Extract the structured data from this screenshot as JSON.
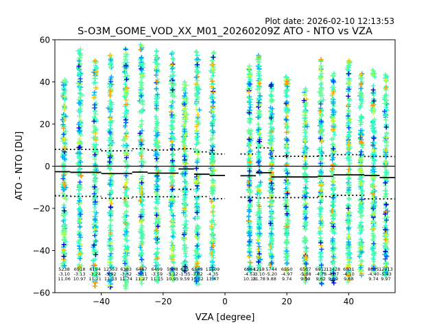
{
  "chart_data": {
    "type": "scatter",
    "plot_date": "Plot date: 2026-02-10 12:13:53",
    "title": "S-O3M_GOME_VOD_XX_M01_20260209Z ATO - NTO vs VZA",
    "xlabel": "VZA [degree]",
    "ylabel": "ATO - NTO [DU]",
    "xlim": [
      -55,
      55
    ],
    "ylim": [
      -60,
      60
    ],
    "xticks": [
      -40,
      -20,
      0,
      20,
      40
    ],
    "yticks": [
      -60,
      -40,
      -20,
      0,
      20,
      40,
      60
    ],
    "zero_line": 0,
    "bins": [
      {
        "vza": -52,
        "n": "5238",
        "mean": "-3.10",
        "std": "11.06",
        "lo": -48,
        "hi": 42
      },
      {
        "vza": -47,
        "n": "6918",
        "mean": "-3.13",
        "std": "10.97",
        "lo": -50,
        "hi": 56
      },
      {
        "vza": -42,
        "n": "6194",
        "mean": "-3.24",
        "std": "11.21",
        "lo": -58,
        "hi": 50
      },
      {
        "vza": -37,
        "n": "12553",
        "mean": "-3.92",
        "std": "11.33",
        "lo": -58,
        "hi": 55
      },
      {
        "vza": -32,
        "n": "6383",
        "mean": "-3.82",
        "std": "11.74",
        "lo": -58,
        "hi": 57
      },
      {
        "vza": -27,
        "n": "6467",
        "mean": "-3.11",
        "std": "11.27",
        "lo": -56,
        "hi": 58
      },
      {
        "vza": -22,
        "n": "6499",
        "mean": "-3.59",
        "std": "11.15",
        "lo": -55,
        "hi": 55
      },
      {
        "vza": -17,
        "n": "5908",
        "mean": "-3.32",
        "std": "10.95",
        "lo": -54,
        "hi": 54
      },
      {
        "vza": -13,
        "n": "625",
        "mean": "-1.35",
        "std": "9.59",
        "lo": -50,
        "hi": 42
      },
      {
        "vza": -9,
        "n": "6549",
        "mean": "-3.82",
        "std": "10.62",
        "lo": -56,
        "hi": 55
      },
      {
        "vza": -4,
        "n": "11109",
        "mean": "-4.35",
        "std": "11.47",
        "lo": -54,
        "hi": 54
      },
      {
        "vza": 8,
        "n": "6564",
        "mean": "-4.53",
        "std": "10.18",
        "lo": -52,
        "hi": 48
      },
      {
        "vza": 11,
        "n": "1218",
        "mean": "-3.10",
        "std": "11.78",
        "lo": -50,
        "hi": 53
      },
      {
        "vza": 15,
        "n": "5744",
        "mean": "-5.20",
        "std": "9.88",
        "lo": -48,
        "hi": 40
      },
      {
        "vza": 20,
        "n": "6550",
        "mean": "-4.97",
        "std": "9.74",
        "lo": -50,
        "hi": 43
      },
      {
        "vza": 26,
        "n": "6557",
        "mean": "-5.08",
        "std": "9.59",
        "lo": -55,
        "hi": 38
      },
      {
        "vza": 31,
        "n": "6912",
        "mean": "-4.78",
        "std": "9.62",
        "lo": -56,
        "hi": 51
      },
      {
        "vza": 35,
        "n": "13428",
        "mean": "-4.07",
        "std": "9.59",
        "lo": -56,
        "hi": 44
      },
      {
        "vza": 40,
        "n": "6831",
        "mean": "-4.10",
        "std": "9.68",
        "lo": -55,
        "hi": 51
      },
      {
        "vza": 44,
        "n": "",
        "mean": "",
        "std": "",
        "lo": -52,
        "hi": 44
      },
      {
        "vza": 48,
        "n": "8885",
        "mean": "-4.40",
        "std": "9.74",
        "lo": -50,
        "hi": 46
      },
      {
        "vza": 52,
        "n": "12013",
        "mean": "-5.43",
        "std": "9.97",
        "lo": -52,
        "hi": 44
      }
    ],
    "mean_segments": [
      {
        "x0": -55,
        "x1": -50,
        "y": -2.6
      },
      {
        "x0": -50,
        "x1": -40,
        "y": -2.9
      },
      {
        "x0": -40,
        "x1": -30,
        "y": -3.5
      },
      {
        "x0": -30,
        "x1": -25,
        "y": -2.8
      },
      {
        "x0": -25,
        "x1": -15,
        "y": -3.3
      },
      {
        "x0": -15,
        "x1": -10,
        "y": -1.3
      },
      {
        "x0": -10,
        "x1": -5,
        "y": -3.8
      },
      {
        "x0": -5,
        "x1": 0,
        "y": -4.4
      },
      {
        "x0": 5,
        "x1": 10,
        "y": -4.5
      },
      {
        "x0": 10,
        "x1": 15,
        "y": -3.1
      },
      {
        "x0": 15,
        "x1": 30,
        "y": -5.1
      },
      {
        "x0": 30,
        "x1": 35,
        "y": -4.8
      },
      {
        "x0": 35,
        "x1": 45,
        "y": -4.1
      },
      {
        "x0": 45,
        "x1": 50,
        "y": -4.4
      },
      {
        "x0": 50,
        "x1": 55,
        "y": -5.4
      }
    ],
    "upper_std_segments": [
      {
        "x0": -55,
        "x1": -40,
        "y": 8.0
      },
      {
        "x0": -40,
        "x1": -30,
        "y": 7.3
      },
      {
        "x0": -30,
        "x1": -25,
        "y": 8.3
      },
      {
        "x0": -25,
        "x1": -15,
        "y": 7.7
      },
      {
        "x0": -15,
        "x1": -10,
        "y": 8.3
      },
      {
        "x0": -10,
        "x1": -5,
        "y": 6.8
      },
      {
        "x0": -5,
        "x1": 0,
        "y": 5.8
      },
      {
        "x0": 5,
        "x1": 10,
        "y": 5.8
      },
      {
        "x0": 10,
        "x1": 15,
        "y": 8.7
      },
      {
        "x0": 15,
        "x1": 30,
        "y": 4.7
      },
      {
        "x0": 30,
        "x1": 35,
        "y": 4.9
      },
      {
        "x0": 35,
        "x1": 45,
        "y": 5.5
      },
      {
        "x0": 45,
        "x1": 55,
        "y": 4.6
      }
    ],
    "lower_std_segments": [
      {
        "x0": -55,
        "x1": -50,
        "y": -14.0
      },
      {
        "x0": -50,
        "x1": -40,
        "y": -14.3
      },
      {
        "x0": -40,
        "x1": -30,
        "y": -15.2
      },
      {
        "x0": -30,
        "x1": -25,
        "y": -14.6
      },
      {
        "x0": -25,
        "x1": -15,
        "y": -14.5
      },
      {
        "x0": -15,
        "x1": -10,
        "y": -11.0
      },
      {
        "x0": -10,
        "x1": -5,
        "y": -14.4
      },
      {
        "x0": -5,
        "x1": 0,
        "y": -15.4
      },
      {
        "x0": 5,
        "x1": 10,
        "y": -14.7
      },
      {
        "x0": 10,
        "x1": 15,
        "y": -15.0
      },
      {
        "x0": 15,
        "x1": 30,
        "y": -14.9
      },
      {
        "x0": 30,
        "x1": 35,
        "y": -14.4
      },
      {
        "x0": 35,
        "x1": 45,
        "y": -13.8
      },
      {
        "x0": 45,
        "x1": 55,
        "y": -15.5
      }
    ],
    "point_colors": [
      "#00a6ff",
      "#2bffc8",
      "#60ff96",
      "#c2ff33",
      "#ffc400",
      "#ff9a00",
      "#0050ff",
      "#0000cd"
    ],
    "line_color": "#000000"
  }
}
